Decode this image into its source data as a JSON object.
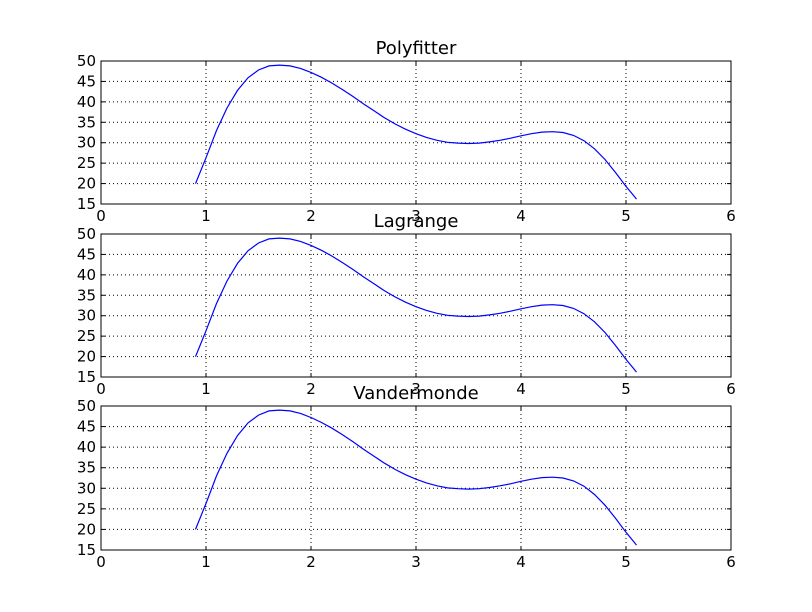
{
  "figure": {
    "background": "#ffffff",
    "line_color": "#0000ff",
    "grid_color": "#000000"
  },
  "chart_data": [
    {
      "type": "line",
      "title": "Polyfitter",
      "xlabel": "",
      "ylabel": "",
      "xlim": [
        0,
        6
      ],
      "ylim": [
        15,
        50
      ],
      "xticks": [
        0,
        1,
        2,
        3,
        4,
        5,
        6
      ],
      "yticks": [
        15,
        20,
        25,
        30,
        35,
        40,
        45,
        50
      ],
      "grid": true,
      "legend": "none",
      "series": [
        {
          "x": [
            0.9,
            1.0,
            1.1,
            1.2,
            1.3,
            1.4,
            1.5,
            1.6,
            1.7,
            1.8,
            1.9,
            2.0,
            2.1,
            2.2,
            2.3,
            2.4,
            2.5,
            2.6,
            2.7,
            2.8,
            2.9,
            3.0,
            3.1,
            3.2,
            3.3,
            3.4,
            3.5,
            3.6,
            3.7,
            3.8,
            3.9,
            4.0,
            4.1,
            4.2,
            4.3,
            4.4,
            4.5,
            4.6,
            4.7,
            4.8,
            4.9,
            5.0,
            5.1
          ],
          "y": [
            20.0,
            26.3,
            33.0,
            38.5,
            42.8,
            45.9,
            47.8,
            48.8,
            49.0,
            48.8,
            48.2,
            47.2,
            46.0,
            44.6,
            43.0,
            41.3,
            39.5,
            37.8,
            36.1,
            34.6,
            33.3,
            32.2,
            31.3,
            30.6,
            30.1,
            29.9,
            29.8,
            29.9,
            30.2,
            30.6,
            31.1,
            31.7,
            32.2,
            32.6,
            32.7,
            32.5,
            31.8,
            30.5,
            28.5,
            25.9,
            22.7,
            19.3,
            16.2
          ]
        }
      ]
    },
    {
      "type": "line",
      "title": "Lagrange",
      "xlabel": "",
      "ylabel": "",
      "xlim": [
        0,
        6
      ],
      "ylim": [
        15,
        50
      ],
      "xticks": [
        0,
        1,
        2,
        3,
        4,
        5,
        6
      ],
      "yticks": [
        15,
        20,
        25,
        30,
        35,
        40,
        45,
        50
      ],
      "grid": true,
      "legend": "none",
      "series": [
        {
          "x": [
            0.9,
            1.0,
            1.1,
            1.2,
            1.3,
            1.4,
            1.5,
            1.6,
            1.7,
            1.8,
            1.9,
            2.0,
            2.1,
            2.2,
            2.3,
            2.4,
            2.5,
            2.6,
            2.7,
            2.8,
            2.9,
            3.0,
            3.1,
            3.2,
            3.3,
            3.4,
            3.5,
            3.6,
            3.7,
            3.8,
            3.9,
            4.0,
            4.1,
            4.2,
            4.3,
            4.4,
            4.5,
            4.6,
            4.7,
            4.8,
            4.9,
            5.0,
            5.1
          ],
          "y": [
            20.0,
            26.3,
            33.0,
            38.5,
            42.8,
            45.9,
            47.8,
            48.8,
            49.0,
            48.8,
            48.2,
            47.2,
            46.0,
            44.6,
            43.0,
            41.3,
            39.5,
            37.8,
            36.1,
            34.6,
            33.3,
            32.2,
            31.3,
            30.6,
            30.1,
            29.9,
            29.8,
            29.9,
            30.2,
            30.6,
            31.1,
            31.7,
            32.2,
            32.6,
            32.7,
            32.5,
            31.8,
            30.5,
            28.5,
            25.9,
            22.7,
            19.3,
            16.2
          ]
        }
      ]
    },
    {
      "type": "line",
      "title": "Vandermonde",
      "xlabel": "",
      "ylabel": "",
      "xlim": [
        0,
        6
      ],
      "ylim": [
        15,
        50
      ],
      "xticks": [
        0,
        1,
        2,
        3,
        4,
        5,
        6
      ],
      "yticks": [
        15,
        20,
        25,
        30,
        35,
        40,
        45,
        50
      ],
      "grid": true,
      "legend": "none",
      "series": [
        {
          "x": [
            0.9,
            1.0,
            1.1,
            1.2,
            1.3,
            1.4,
            1.5,
            1.6,
            1.7,
            1.8,
            1.9,
            2.0,
            2.1,
            2.2,
            2.3,
            2.4,
            2.5,
            2.6,
            2.7,
            2.8,
            2.9,
            3.0,
            3.1,
            3.2,
            3.3,
            3.4,
            3.5,
            3.6,
            3.7,
            3.8,
            3.9,
            4.0,
            4.1,
            4.2,
            4.3,
            4.4,
            4.5,
            4.6,
            4.7,
            4.8,
            4.9,
            5.0,
            5.1
          ],
          "y": [
            20.0,
            26.3,
            33.0,
            38.5,
            42.8,
            45.9,
            47.8,
            48.8,
            49.0,
            48.8,
            48.2,
            47.2,
            46.0,
            44.6,
            43.0,
            41.3,
            39.5,
            37.8,
            36.1,
            34.6,
            33.3,
            32.2,
            31.3,
            30.6,
            30.1,
            29.9,
            29.8,
            29.9,
            30.2,
            30.6,
            31.1,
            31.7,
            32.2,
            32.6,
            32.7,
            32.5,
            31.8,
            30.5,
            28.5,
            25.9,
            22.7,
            19.3,
            16.2
          ]
        }
      ]
    }
  ]
}
